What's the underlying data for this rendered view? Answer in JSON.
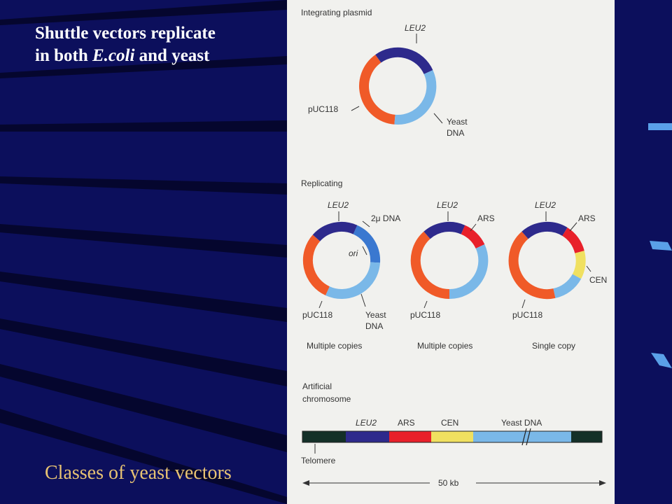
{
  "slide": {
    "title_line1": "Shuttle vectors replicate",
    "title_line2_pre": "in both ",
    "title_line2_italic": "E.coli",
    "title_line2_post": " and yeast",
    "caption": "Classes of yeast vectors"
  },
  "colors": {
    "background": "#0c0f5c",
    "stripe": "#05062e",
    "panel": "#f1f1ee",
    "puc118": "#f05a28",
    "leu2": "#2e2a8c",
    "yeast_dna": "#7ab8e8",
    "two_micron": "#3a78d0",
    "ars": "#e8202a",
    "cen": "#f0e060",
    "telomere": "#143028",
    "caption": "#e8c373"
  },
  "figure": {
    "integrating": {
      "heading": "Integrating plasmid",
      "labels": {
        "leu2": "LEU2",
        "puc118": "pUC118",
        "yeast1": "Yeast",
        "yeast2": "DNA"
      }
    },
    "replicating": {
      "heading": "Replicating",
      "plasmid1": {
        "labels": {
          "leu2": "LEU2",
          "two_micron": "2μ DNA",
          "ori": "ori",
          "puc118": "pUC118",
          "yeast1": "Yeast",
          "yeast2": "DNA"
        },
        "copy": "Multiple copies"
      },
      "plasmid2": {
        "labels": {
          "leu2": "LEU2",
          "ars": "ARS",
          "puc118": "pUC118"
        },
        "copy": "Multiple copies"
      },
      "plasmid3": {
        "labels": {
          "leu2": "LEU2",
          "ars": "ARS",
          "cen": "CEN",
          "puc118": "pUC118"
        },
        "copy": "Single copy"
      }
    },
    "artificial": {
      "heading1": "Artificial",
      "heading2": "chromosome",
      "labels": {
        "leu2": "LEU2",
        "ars": "ARS",
        "cen": "CEN",
        "yeast": "Yeast DNA",
        "telomere": "Telomere"
      },
      "scale": "50 kb"
    }
  }
}
